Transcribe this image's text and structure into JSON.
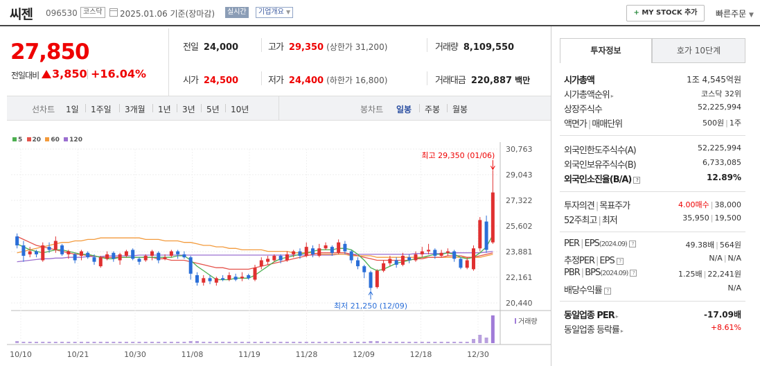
{
  "header": {
    "name": "씨젠",
    "code": "096530",
    "market": "코스닥",
    "date": "2025.01.06  기준(장마감)",
    "realtime": "실시간",
    "overview": "기업개요",
    "mystock": "MY STOCK 추가",
    "quick_order": "빠른주문"
  },
  "price": {
    "current": "27,850",
    "prev_label": "전일대비",
    "change": "3,850",
    "change_pct": "+16.04%"
  },
  "summary": {
    "prev_close": {
      "label": "전일",
      "value": "24,000"
    },
    "high": {
      "label": "고가",
      "value": "29,350",
      "sub": "(상한가 31,200)"
    },
    "volume": {
      "label": "거래량",
      "value": "8,109,550"
    },
    "open": {
      "label": "시가",
      "value": "24,500"
    },
    "low": {
      "label": "저가",
      "value": "24,400",
      "sub": "(하한가 16,800)"
    },
    "amount": {
      "label": "거래대금",
      "value": "220,887",
      "unit": "백만"
    }
  },
  "periods": {
    "line_label": "선차트",
    "line_items": [
      "1일",
      "1주일",
      "3개월",
      "1년",
      "3년",
      "5년",
      "10년"
    ],
    "candle_label": "봉차트",
    "candle_items": [
      "일봉",
      "주봉",
      "월봉"
    ],
    "active": "일봉"
  },
  "chart_data": {
    "type": "candlestick",
    "legend": [
      {
        "label": "5",
        "color": "#4caf50"
      },
      {
        "label": "20",
        "color": "#e5534b"
      },
      {
        "label": "60",
        "color": "#f39a3b"
      },
      {
        "label": "120",
        "color": "#9b6fd0"
      }
    ],
    "y_ticks": [
      "30,763",
      "29,043",
      "27,322",
      "25,602",
      "23,881",
      "22,161",
      "20,440"
    ],
    "ylim": [
      20440,
      30763
    ],
    "x_ticks": [
      "10/10",
      "10/21",
      "10/30",
      "11/08",
      "11/19",
      "11/28",
      "12/09",
      "12/18",
      "12/30"
    ],
    "max_annotation": "최고 29,350 (01/06)",
    "min_annotation": "최저 21,250 (12/09)",
    "volume_label": "거래량",
    "candles": [
      {
        "o": 24900,
        "c": 24300,
        "h": 25100,
        "l": 24100
      },
      {
        "o": 24300,
        "c": 23600,
        "h": 24600,
        "l": 23200
      },
      {
        "o": 23700,
        "c": 23900,
        "h": 24200,
        "l": 23500
      },
      {
        "o": 23900,
        "c": 23700,
        "h": 24000,
        "l": 23500
      },
      {
        "o": 23300,
        "c": 24300,
        "h": 24500,
        "l": 23200
      },
      {
        "o": 24200,
        "c": 24000,
        "h": 24500,
        "l": 23800
      },
      {
        "o": 24000,
        "c": 24600,
        "h": 24900,
        "l": 23800
      },
      {
        "o": 24300,
        "c": 23700,
        "h": 24400,
        "l": 23600
      },
      {
        "o": 23700,
        "c": 23900,
        "h": 24000,
        "l": 23400
      },
      {
        "o": 23700,
        "c": 23300,
        "h": 23800,
        "l": 23100
      },
      {
        "o": 23600,
        "c": 23900,
        "h": 24000,
        "l": 23300
      },
      {
        "o": 23800,
        "c": 23500,
        "h": 23900,
        "l": 23400
      },
      {
        "o": 23500,
        "c": 23200,
        "h": 23700,
        "l": 23000
      },
      {
        "o": 22900,
        "c": 23500,
        "h": 23600,
        "l": 22800
      },
      {
        "o": 23400,
        "c": 23700,
        "h": 23900,
        "l": 23300
      },
      {
        "o": 23800,
        "c": 23400,
        "h": 23900,
        "l": 23200
      },
      {
        "o": 23300,
        "c": 23700,
        "h": 23800,
        "l": 23000
      },
      {
        "o": 23600,
        "c": 23900,
        "h": 24000,
        "l": 23500
      },
      {
        "o": 24000,
        "c": 23400,
        "h": 24100,
        "l": 23300
      },
      {
        "o": 23400,
        "c": 23200,
        "h": 23500,
        "l": 23000
      },
      {
        "o": 23300,
        "c": 23600,
        "h": 23700,
        "l": 23200
      },
      {
        "o": 23600,
        "c": 23900,
        "h": 24000,
        "l": 23300
      },
      {
        "o": 23800,
        "c": 23300,
        "h": 23900,
        "l": 23100
      },
      {
        "o": 23400,
        "c": 23500,
        "h": 23700,
        "l": 23300
      },
      {
        "o": 23600,
        "c": 23900,
        "h": 24000,
        "l": 23500
      },
      {
        "o": 23900,
        "c": 23700,
        "h": 24000,
        "l": 23400
      },
      {
        "o": 23700,
        "c": 23500,
        "h": 23900,
        "l": 23400
      },
      {
        "o": 23500,
        "c": 22400,
        "h": 23600,
        "l": 22000
      },
      {
        "o": 22300,
        "c": 21800,
        "h": 22500,
        "l": 21600
      },
      {
        "o": 21800,
        "c": 22100,
        "h": 22300,
        "l": 21600
      },
      {
        "o": 22100,
        "c": 21900,
        "h": 22300,
        "l": 21700
      },
      {
        "o": 21800,
        "c": 22100,
        "h": 22200,
        "l": 21600
      },
      {
        "o": 22100,
        "c": 22000,
        "h": 22300,
        "l": 21900
      },
      {
        "o": 22000,
        "c": 22300,
        "h": 22500,
        "l": 21900
      },
      {
        "o": 22200,
        "c": 22000,
        "h": 22400,
        "l": 21900
      },
      {
        "o": 22100,
        "c": 22200,
        "h": 22500,
        "l": 21900
      },
      {
        "o": 22300,
        "c": 22100,
        "h": 22400,
        "l": 22000
      },
      {
        "o": 22000,
        "c": 22800,
        "h": 23000,
        "l": 21900
      },
      {
        "o": 22900,
        "c": 23300,
        "h": 23500,
        "l": 22700
      },
      {
        "o": 23200,
        "c": 23400,
        "h": 23600,
        "l": 23000
      },
      {
        "o": 23300,
        "c": 23600,
        "h": 23700,
        "l": 23200
      },
      {
        "o": 23600,
        "c": 23300,
        "h": 23700,
        "l": 23100
      },
      {
        "o": 23300,
        "c": 23700,
        "h": 23900,
        "l": 23200
      },
      {
        "o": 23700,
        "c": 23900,
        "h": 24000,
        "l": 23500
      },
      {
        "o": 23900,
        "c": 23600,
        "h": 24100,
        "l": 23400
      },
      {
        "o": 23600,
        "c": 24200,
        "h": 24500,
        "l": 23500
      },
      {
        "o": 24100,
        "c": 23700,
        "h": 24300,
        "l": 23500
      },
      {
        "o": 23600,
        "c": 24100,
        "h": 24400,
        "l": 23500
      },
      {
        "o": 24100,
        "c": 24300,
        "h": 24500,
        "l": 24000
      },
      {
        "o": 24200,
        "c": 23800,
        "h": 24300,
        "l": 23600
      },
      {
        "o": 23800,
        "c": 24500,
        "h": 24700,
        "l": 23700
      },
      {
        "o": 24400,
        "c": 23900,
        "h": 24600,
        "l": 23700
      },
      {
        "o": 23900,
        "c": 23300,
        "h": 24000,
        "l": 23100
      },
      {
        "o": 23300,
        "c": 22900,
        "h": 23500,
        "l": 22700
      },
      {
        "o": 22900,
        "c": 22500,
        "h": 23000,
        "l": 22100
      },
      {
        "o": 22500,
        "c": 21450,
        "h": 22600,
        "l": 21250
      },
      {
        "o": 21500,
        "c": 22600,
        "h": 22700,
        "l": 21400
      },
      {
        "o": 22600,
        "c": 23100,
        "h": 23300,
        "l": 22500
      },
      {
        "o": 23100,
        "c": 23400,
        "h": 23600,
        "l": 22900
      },
      {
        "o": 23300,
        "c": 23000,
        "h": 23500,
        "l": 22800
      },
      {
        "o": 23000,
        "c": 23600,
        "h": 23800,
        "l": 22900
      },
      {
        "o": 23500,
        "c": 23300,
        "h": 23700,
        "l": 23100
      },
      {
        "o": 23300,
        "c": 23700,
        "h": 23900,
        "l": 23200
      },
      {
        "o": 23700,
        "c": 23900,
        "h": 24200,
        "l": 23500
      },
      {
        "o": 23900,
        "c": 24000,
        "h": 24400,
        "l": 23700
      },
      {
        "o": 24000,
        "c": 23600,
        "h": 24100,
        "l": 23400
      },
      {
        "o": 23600,
        "c": 23800,
        "h": 24000,
        "l": 23500
      },
      {
        "o": 23800,
        "c": 23900,
        "h": 24100,
        "l": 23600
      },
      {
        "o": 23900,
        "c": 23400,
        "h": 24000,
        "l": 23200
      },
      {
        "o": 23400,
        "c": 22800,
        "h": 23500,
        "l": 22700
      },
      {
        "o": 22800,
        "c": 23300,
        "h": 23500,
        "l": 22700
      },
      {
        "o": 22700,
        "c": 24100,
        "h": 24300,
        "l": 22600
      },
      {
        "o": 24100,
        "c": 26000,
        "h": 26200,
        "l": 23900
      },
      {
        "o": 25900,
        "c": 24000,
        "h": 26300,
        "l": 23800
      },
      {
        "o": 24500,
        "c": 27850,
        "h": 29350,
        "l": 24400
      }
    ],
    "volumes": [
      3,
      2,
      2,
      2,
      2,
      2,
      2,
      2,
      2,
      2,
      2,
      2,
      2,
      2,
      2,
      2,
      2,
      2,
      2,
      2,
      2,
      2,
      2,
      2,
      2,
      2,
      2,
      3,
      3,
      2,
      2,
      2,
      2,
      2,
      2,
      2,
      2,
      2,
      2,
      2,
      2,
      2,
      2,
      2,
      2,
      2,
      2,
      2,
      2,
      2,
      2,
      2,
      2,
      2,
      2,
      3,
      3,
      2,
      2,
      2,
      2,
      2,
      2,
      2,
      2,
      2,
      2,
      2,
      2,
      2,
      2,
      6,
      12,
      8,
      40
    ],
    "ma5": [
      24400,
      24200,
      24000,
      23900,
      23800,
      23900,
      24000,
      24000,
      23900,
      23800,
      23700,
      23700,
      23600,
      23500,
      23400,
      23400,
      23500,
      23500,
      23500,
      23500,
      23500,
      23500,
      23500,
      23500,
      23500,
      23600,
      23600,
      23300,
      22900,
      22600,
      22300,
      22000,
      22000,
      22000,
      22100,
      22100,
      22100,
      22300,
      22600,
      22900,
      23200,
      23400,
      23500,
      23600,
      23700,
      23800,
      23900,
      24000,
      24000,
      24000,
      24100,
      24100,
      24000,
      23700,
      23300,
      22800,
      22600,
      22700,
      22900,
      23100,
      23200,
      23300,
      23400,
      23500,
      23600,
      23700,
      23700,
      23800,
      23700,
      23500,
      23400,
      23500,
      23800,
      24200,
      25000
    ],
    "ma20": [
      24900,
      24700,
      24500,
      24300,
      24200,
      24100,
      24000,
      23900,
      23800,
      23700,
      23700,
      23600,
      23600,
      23500,
      23500,
      23500,
      23500,
      23500,
      23500,
      23500,
      23500,
      23500,
      23400,
      23400,
      23300,
      23300,
      23300,
      23200,
      23100,
      23000,
      22900,
      22800,
      22800,
      22700,
      22700,
      22700,
      22700,
      22800,
      22900,
      23000,
      23100,
      23200,
      23300,
      23400,
      23500,
      23600,
      23700,
      23800,
      23800,
      23800,
      23800,
      23800,
      23700,
      23600,
      23500,
      23400,
      23300,
      23300,
      23300,
      23300,
      23300,
      23300,
      23400,
      23400,
      23500,
      23500,
      23500,
      23600,
      23600,
      23600,
      23500,
      23500,
      23600,
      23700,
      23800
    ],
    "ma60": [
      23800,
      23900,
      24000,
      24100,
      24200,
      24300,
      24400,
      24500,
      24500,
      24600,
      24600,
      24700,
      24700,
      24800,
      24800,
      24800,
      24800,
      24800,
      24800,
      24800,
      24700,
      24700,
      24700,
      24600,
      24600,
      24600,
      24500,
      24500,
      24400,
      24300,
      24300,
      24200,
      24200,
      24100,
      24100,
      24000,
      24000,
      24000,
      24000,
      23900,
      23900,
      23900,
      23900,
      23800,
      23800,
      23800,
      23800,
      23700,
      23700,
      23700,
      23700,
      23700,
      23600,
      23600,
      23600,
      23600,
      23500,
      23500,
      23500,
      23500,
      23500,
      23500,
      23500,
      23500,
      23500,
      23500,
      23500,
      23500,
      23500,
      23500,
      23500,
      23500,
      23500,
      23600,
      23700
    ],
    "ma120": [
      23200,
      23250,
      23300,
      23350,
      23400,
      23400,
      23450,
      23450,
      23500,
      23500,
      23500,
      23550,
      23550,
      23550,
      23600,
      23600,
      23600,
      23600,
      23600,
      23650,
      23650,
      23650,
      23650,
      23650,
      23650,
      23650,
      23650,
      23650,
      23650,
      23650,
      23650,
      23650,
      23650,
      23650,
      23650,
      23650,
      23650,
      23650,
      23650,
      23650,
      23650,
      23650,
      23650,
      23650,
      23650,
      23650,
      23650,
      23650,
      23650,
      23650,
      23700,
      23700,
      23700,
      23700,
      23700,
      23700,
      23700,
      23700,
      23700,
      23700,
      23700,
      23700,
      23750,
      23750,
      23750,
      23750,
      23750,
      23800,
      23800,
      23800,
      23800,
      23800,
      23800,
      23850,
      23900
    ]
  },
  "info": {
    "tabs": [
      "투자정보",
      "호가 10단계"
    ],
    "market_cap": {
      "label": "시가총액",
      "value": "1조 4,545억원"
    },
    "market_cap_rank": {
      "label": "시가총액순위",
      "value": "코스닥 32위"
    },
    "shares": {
      "label": "상장주식수",
      "value": "52,225,994"
    },
    "par": {
      "label1": "액면가",
      "label2": "매매단위",
      "value1": "500원",
      "value2": "1주"
    },
    "foreign_limit": {
      "label": "외국인한도주식수(A)",
      "value": "52,225,994"
    },
    "foreign_hold": {
      "label": "외국인보유주식수(B)",
      "value": "6,733,085"
    },
    "foreign_ratio": {
      "label": "외국인소진율(B/A)",
      "value": "12.89%"
    },
    "opinion": {
      "label1": "투자의견",
      "label2": "목표주가",
      "value1": "4.00매수",
      "value2": "38,000"
    },
    "week52": {
      "label1": "52주최고",
      "label2": "최저",
      "value1": "35,950",
      "value2": "19,500"
    },
    "per": {
      "label1": "PER",
      "label2": "EPS",
      "sub": "(2024.09)",
      "value1": "49.38배",
      "value2": "564원"
    },
    "est_per": {
      "label1": "추정PER",
      "label2": "EPS",
      "value1": "N/A",
      "value2": "N/A"
    },
    "pbr": {
      "label1": "PBR",
      "label2": "BPS",
      "sub": "(2024.09)",
      "value1": "1.25배",
      "value2": "22,241원"
    },
    "dividend": {
      "label": "배당수익률",
      "value": "N/A"
    },
    "sector_per": {
      "label": "동일업종 PER",
      "value": "-17.09배"
    },
    "sector_rate": {
      "label": "동일업종 등락률",
      "value": "+8.61%"
    }
  }
}
